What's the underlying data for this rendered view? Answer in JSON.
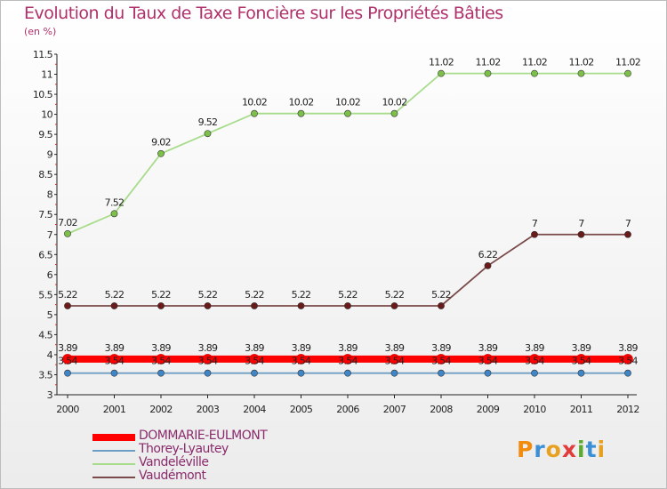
{
  "title": "Evolution du Taux de Taxe Foncière sur les Propriétés Bâties",
  "unit": "(en %)",
  "logo": {
    "text": "Proxiti",
    "letters": [
      "P",
      "r",
      "o",
      "x",
      "i",
      "t",
      "i"
    ],
    "colors": [
      "#f28c0f",
      "#3a8fd6",
      "#e8a020",
      "#e23b3b",
      "#5aaa2f",
      "#3a8fd6",
      "#e8a020"
    ]
  },
  "chart_data": {
    "type": "line",
    "title": "Evolution du Taux de Taxe Foncière sur les Propriétés Bâties",
    "ylabel": "(en %)",
    "xlabel": "",
    "categories": [
      "2000",
      "2001",
      "2002",
      "2003",
      "2004",
      "2005",
      "2006",
      "2007",
      "2008",
      "2009",
      "2010",
      "2011",
      "2012"
    ],
    "ylim": [
      3,
      11.5
    ],
    "yticks": [
      "3",
      "3.5",
      "4",
      "4.5",
      "5",
      "5.5",
      "6",
      "6.5",
      "7",
      "7.5",
      "8",
      "8.5",
      "9",
      "9.5",
      "10",
      "10.5",
      "11",
      "11.5"
    ],
    "grid": false,
    "legend": "bottom-left",
    "series": [
      {
        "name": "DOMMARIE-EULMONT",
        "color": "#ff0000",
        "point_color": "#ff0000",
        "values": [
          3.89,
          3.89,
          3.89,
          3.89,
          3.89,
          3.89,
          3.89,
          3.89,
          3.89,
          3.89,
          3.89,
          3.89,
          3.89
        ],
        "labels": [
          "3.89",
          "3.89",
          "3.89",
          "3.89",
          "3.89",
          "3.89",
          "3.89",
          "3.89",
          "3.89",
          "3.89",
          "3.89",
          "3.89",
          "3.89"
        ]
      },
      {
        "name": "Thorey-Lyautey",
        "color": "#6f9ec4",
        "point_color": "#3f86c8",
        "values": [
          3.54,
          3.54,
          3.54,
          3.54,
          3.54,
          3.54,
          3.54,
          3.54,
          3.54,
          3.54,
          3.54,
          3.54,
          3.54
        ],
        "labels": [
          "3.54",
          "3.54",
          "3.54",
          "3.54",
          "3.54",
          "3.54",
          "3.54",
          "3.54",
          "3.54",
          "3.54",
          "3.54",
          "3.54",
          "3.54"
        ]
      },
      {
        "name": "Vandeléville",
        "color": "#a8dc8c",
        "point_color": "#7cc04a",
        "values": [
          7.02,
          7.52,
          9.02,
          9.52,
          10.02,
          10.02,
          10.02,
          10.02,
          11.02,
          11.02,
          11.02,
          11.02,
          11.02
        ],
        "labels": [
          "7.02",
          "7.52",
          "9.02",
          "9.52",
          "10.02",
          "10.02",
          "10.02",
          "10.02",
          "11.02",
          "11.02",
          "11.02",
          "11.02",
          "11.02"
        ]
      },
      {
        "name": "Vaudémont",
        "color": "#7a4a4a",
        "point_color": "#6b1a1a",
        "values": [
          5.22,
          5.22,
          5.22,
          5.22,
          5.22,
          5.22,
          5.22,
          5.22,
          5.22,
          6.22,
          7,
          7,
          7
        ],
        "labels": [
          "5.22",
          "5.22",
          "5.22",
          "5.22",
          "5.22",
          "5.22",
          "5.22",
          "5.22",
          "5.22",
          "6.22",
          "7",
          "7",
          "7"
        ]
      }
    ]
  }
}
